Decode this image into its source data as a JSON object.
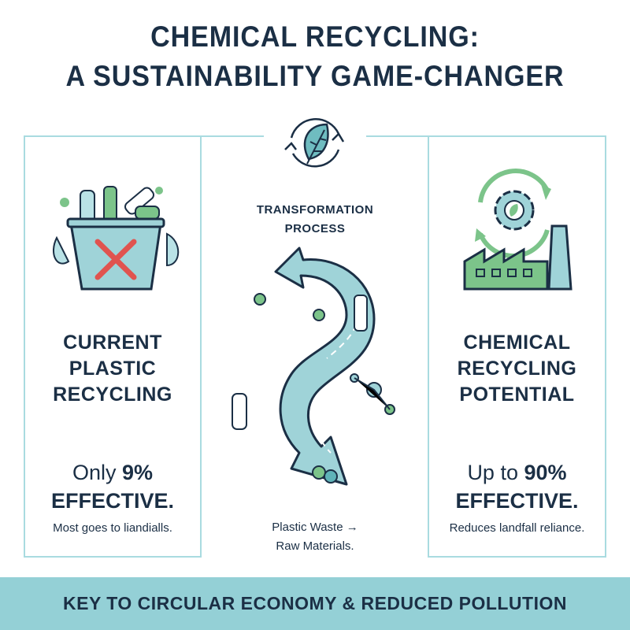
{
  "title": {
    "line1": "CHEMICAL RECYCLING:",
    "line2": "A SUSTAINABILITY GAME-CHANGER"
  },
  "top_icon": "leaf-recycle-icon",
  "left": {
    "heading": [
      "CURRENT",
      "PLASTIC",
      "RECYCLING"
    ],
    "stat_prefix": "Only",
    "stat_value": "9%",
    "stat_suffix": "EFFECTIVE.",
    "note": "Most goes to liandialls.",
    "icon": "trash-bin-with-x-icon"
  },
  "center": {
    "heading": [
      "TRANSFORMATION",
      "PROCESS"
    ],
    "caption": [
      "Plastic Waste →",
      "Raw Materials."
    ],
    "icon": "s-shaped-arrow-icon"
  },
  "right": {
    "heading": [
      "CHEMICAL",
      "RECYCLING",
      "POTENTIAL"
    ],
    "stat_prefix": "Up to",
    "stat_value": "90%",
    "stat_suffix": "EFFECTIVE.",
    "note": "Reduces landfall reliance.",
    "icon": "factory-gear-icon"
  },
  "footer": "KEY TO CIRCULAR ECONOMY & REDUCED POLLUTION",
  "colors": {
    "navy": "#1b2f45",
    "teal": "#94d0d6",
    "green": "#7cc48a",
    "red": "#e0534f"
  }
}
